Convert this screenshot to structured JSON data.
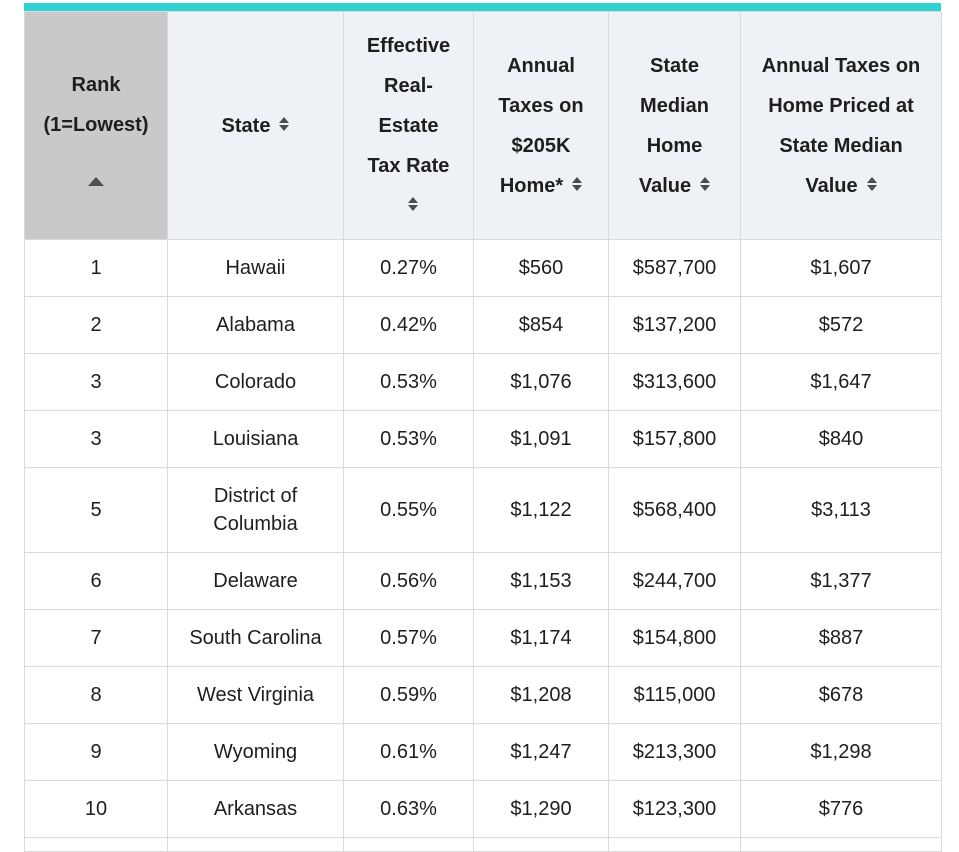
{
  "colors": {
    "accent_bar": "#2fd2d0",
    "rank_header_bg": "#c9c9c9",
    "header_bg": "#eef1f5",
    "border": "#d8dbde",
    "text": "#1e1e1e"
  },
  "table": {
    "columns": [
      {
        "key": "rank",
        "label": "Rank (1=Lowest)",
        "lines": [
          "Rank",
          "(1=Lowest)"
        ],
        "sort": "asc",
        "icon_inline": false
      },
      {
        "key": "state",
        "label": "State",
        "lines": [
          "State"
        ],
        "sort": "both",
        "icon_inline": true
      },
      {
        "key": "tax_rate",
        "label": "Effective Real-Estate Tax Rate",
        "lines": [
          "Effective",
          "Real-",
          "Estate",
          "Tax Rate"
        ],
        "sort": "both",
        "icon_inline": false
      },
      {
        "key": "taxes_205k",
        "label": "Annual Taxes on $205K Home*",
        "lines": [
          "Annual",
          "Taxes on",
          "$205K",
          "Home*"
        ],
        "sort": "both",
        "icon_inline": true
      },
      {
        "key": "median_value",
        "label": "State Median Home Value",
        "lines": [
          "State",
          "Median",
          "Home",
          "Value"
        ],
        "sort": "both",
        "icon_inline": true
      },
      {
        "key": "taxes_median",
        "label": "Annual Taxes on Home Priced at State Median Value",
        "lines": [
          "Annual Taxes on",
          "Home Priced at",
          "State Median",
          "Value"
        ],
        "sort": "both",
        "icon_inline": true
      }
    ],
    "rows": [
      [
        "1",
        "Hawaii",
        "0.27%",
        "$560",
        "$587,700",
        "$1,607"
      ],
      [
        "2",
        "Alabama",
        "0.42%",
        "$854",
        "$137,200",
        "$572"
      ],
      [
        "3",
        "Colorado",
        "0.53%",
        "$1,076",
        "$313,600",
        "$1,647"
      ],
      [
        "3",
        "Louisiana",
        "0.53%",
        "$1,091",
        "$157,800",
        "$840"
      ],
      [
        "5",
        "District of Columbia",
        "0.55%",
        "$1,122",
        "$568,400",
        "$3,113"
      ],
      [
        "6",
        "Delaware",
        "0.56%",
        "$1,153",
        "$244,700",
        "$1,377"
      ],
      [
        "7",
        "South Carolina",
        "0.57%",
        "$1,174",
        "$154,800",
        "$887"
      ],
      [
        "8",
        "West Virginia",
        "0.59%",
        "$1,208",
        "$115,000",
        "$678"
      ],
      [
        "9",
        "Wyoming",
        "0.61%",
        "$1,247",
        "$213,300",
        "$1,298"
      ],
      [
        "10",
        "Arkansas",
        "0.63%",
        "$1,290",
        "$123,300",
        "$776"
      ]
    ]
  }
}
